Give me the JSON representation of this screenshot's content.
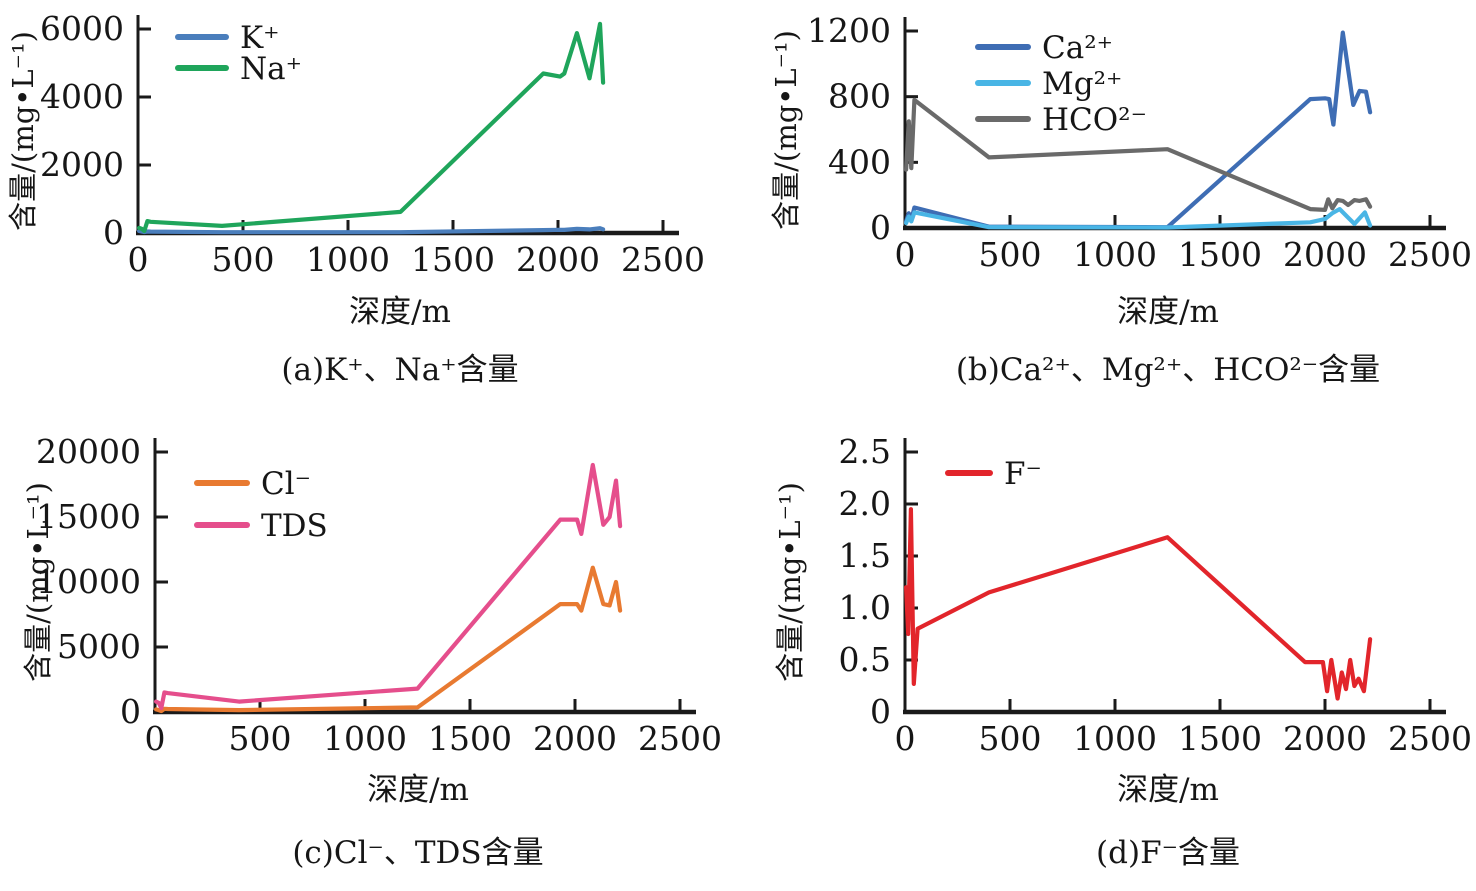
{
  "figure": {
    "background": "#ffffff",
    "axis_color": "#1a1a1a",
    "text_color": "#161616"
  },
  "chart_data": [
    {
      "id": "a",
      "type": "line",
      "caption": "(a)K⁺、Na⁺含量",
      "xlabel": "深度/m",
      "ylabel": "含量/(mg•L⁻¹)",
      "xlim": [
        0,
        2500
      ],
      "ylim": [
        0,
        6000
      ],
      "xticks": [
        0,
        500,
        1000,
        1500,
        2000,
        2500
      ],
      "xtick_labels": [
        "0",
        "500",
        "1000",
        "1500",
        "2000",
        "2500"
      ],
      "yticks": [
        0,
        2000,
        4000,
        6000
      ],
      "ytick_labels": [
        "0",
        "2000",
        "4000",
        "6000"
      ],
      "grid": false,
      "legend_position": "top-left-inside",
      "series": [
        {
          "name": "K⁺",
          "color": "#4a7ebc",
          "x": [
            5,
            18,
            30,
            45,
            60,
            400,
            1250,
            1930,
            2010,
            2030,
            2090,
            2150,
            2200,
            2215
          ],
          "y": [
            60,
            40,
            30,
            45,
            40,
            25,
            25,
            85,
            95,
            90,
            120,
            105,
            140,
            110
          ]
        },
        {
          "name": "Na⁺",
          "color": "#1fa55b",
          "x": [
            5,
            18,
            30,
            45,
            60,
            400,
            1250,
            1930,
            2010,
            2030,
            2090,
            2150,
            2200,
            2215
          ],
          "y": [
            150,
            120,
            60,
            350,
            330,
            210,
            620,
            4690,
            4600,
            4690,
            5880,
            4550,
            6150,
            4420
          ]
        }
      ]
    },
    {
      "id": "b",
      "type": "line",
      "caption": "(b)Ca²⁺、Mg²⁺、HCO²⁻含量",
      "xlabel": "深度/m",
      "ylabel": "含量/(mg•L⁻¹)",
      "xlim": [
        0,
        2500
      ],
      "ylim": [
        0,
        1200
      ],
      "xticks": [
        0,
        500,
        1000,
        1500,
        2000,
        2500
      ],
      "xtick_labels": [
        "0",
        "500",
        "1000",
        "1500",
        "2000",
        "2500"
      ],
      "yticks": [
        0,
        400,
        800,
        1200
      ],
      "ytick_labels": [
        "0",
        "400",
        "800",
        "1200"
      ],
      "grid": false,
      "legend_position": "top-left-inside",
      "series": [
        {
          "name": "Ca²⁺",
          "color": "#3e6db4",
          "x": [
            5,
            18,
            30,
            45,
            400,
            1250,
            1930,
            2000,
            2020,
            2040,
            2085,
            2135,
            2165,
            2195,
            2215
          ],
          "y": [
            40,
            90,
            50,
            125,
            8,
            5,
            785,
            790,
            785,
            630,
            1190,
            750,
            835,
            830,
            705
          ]
        },
        {
          "name": "Mg²⁺",
          "color": "#49b5e5",
          "x": [
            5,
            18,
            30,
            45,
            400,
            1250,
            1930,
            2000,
            2035,
            2070,
            2105,
            2140,
            2190,
            2215
          ],
          "y": [
            30,
            70,
            40,
            95,
            5,
            3,
            35,
            55,
            90,
            115,
            70,
            25,
            95,
            15
          ]
        },
        {
          "name": "HCO²⁻",
          "color": "#6a6a6a",
          "x": [
            5,
            18,
            30,
            45,
            400,
            1250,
            1930,
            2000,
            2015,
            2035,
            2060,
            2085,
            2110,
            2140,
            2165,
            2195,
            2215
          ],
          "y": [
            355,
            650,
            365,
            780,
            430,
            480,
            115,
            110,
            175,
            120,
            170,
            165,
            140,
            170,
            165,
            175,
            130
          ]
        }
      ]
    },
    {
      "id": "c",
      "type": "line",
      "caption": "(c)Cl⁻、TDS含量",
      "xlabel": "深度/m",
      "ylabel": "含量/(mg•L⁻¹)",
      "xlim": [
        0,
        2500
      ],
      "ylim": [
        0,
        20000
      ],
      "xticks": [
        0,
        500,
        1000,
        1500,
        2000,
        2500
      ],
      "xtick_labels": [
        "0",
        "500",
        "1000",
        "1500",
        "2000",
        "2500"
      ],
      "yticks": [
        0,
        5000,
        10000,
        15000,
        20000
      ],
      "ytick_labels": [
        "0",
        "5000",
        "10000",
        "15000",
        "20000"
      ],
      "grid": false,
      "legend_position": "top-left-inside",
      "series": [
        {
          "name": "Cl⁻",
          "color": "#e87a31",
          "x": [
            5,
            18,
            30,
            45,
            60,
            400,
            1250,
            1930,
            2010,
            2030,
            2085,
            2135,
            2165,
            2195,
            2215
          ],
          "y": [
            200,
            150,
            80,
            250,
            230,
            150,
            350,
            8300,
            8300,
            7800,
            11100,
            8300,
            8200,
            10000,
            7800
          ]
        },
        {
          "name": "TDS",
          "color": "#e54e8c",
          "x": [
            5,
            18,
            30,
            45,
            60,
            400,
            1250,
            1930,
            2010,
            2030,
            2085,
            2135,
            2165,
            2195,
            2215
          ],
          "y": [
            800,
            700,
            300,
            1500,
            1450,
            800,
            1800,
            14800,
            14800,
            13700,
            19000,
            14400,
            15000,
            17800,
            14300
          ]
        }
      ]
    },
    {
      "id": "d",
      "type": "line",
      "caption": "(d)F⁻含量",
      "xlabel": "深度/m",
      "ylabel": "含量/(mg•L⁻¹)",
      "xlim": [
        0,
        2500
      ],
      "ylim": [
        0,
        2.5
      ],
      "xticks": [
        0,
        500,
        1000,
        1500,
        2000,
        2500
      ],
      "xtick_labels": [
        "0",
        "500",
        "1000",
        "1500",
        "2000",
        "2500"
      ],
      "yticks": [
        0,
        0.5,
        1.0,
        1.5,
        2.0,
        2.5
      ],
      "ytick_labels": [
        "0",
        "0.5",
        "1.0",
        "1.5",
        "2.0",
        "2.5"
      ],
      "grid": false,
      "legend_position": "top-left-inside",
      "series": [
        {
          "name": "F⁻",
          "color": "#e2252b",
          "x": [
            5,
            15,
            28,
            42,
            60,
            400,
            1250,
            1905,
            1990,
            2010,
            2030,
            2060,
            2080,
            2100,
            2120,
            2140,
            2160,
            2185,
            2215
          ],
          "y": [
            1.2,
            0.75,
            1.95,
            0.27,
            0.8,
            1.15,
            1.68,
            0.48,
            0.48,
            0.2,
            0.5,
            0.13,
            0.38,
            0.22,
            0.5,
            0.25,
            0.32,
            0.2,
            0.7
          ]
        }
      ]
    }
  ]
}
